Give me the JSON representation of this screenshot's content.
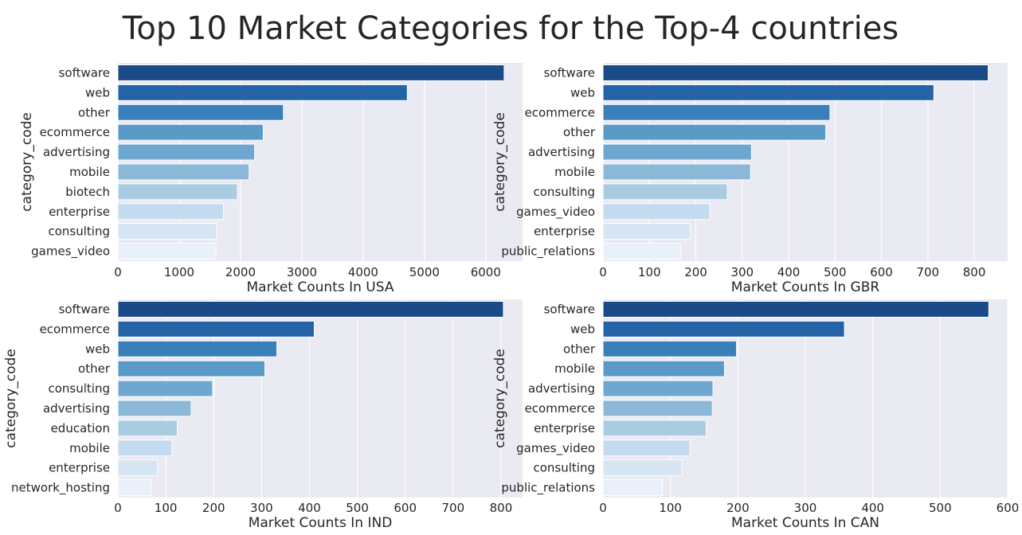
{
  "title": "Top 10 Market Categories for the Top-4 countries",
  "palette": [
    "#1a4a87",
    "#2464a6",
    "#3980ba",
    "#5a9ac8",
    "#6ea7d0",
    "#8ab8d6",
    "#aacce3",
    "#c4daee",
    "#d6e5f3",
    "#e8f0f9"
  ],
  "style": {
    "plot_bg": "#eaeaf2",
    "grid_color": "#ffffff",
    "text_color": "#262626"
  },
  "chart_data": [
    {
      "type": "bar",
      "orientation": "horizontal",
      "categories": [
        "software",
        "web",
        "other",
        "ecommerce",
        "advertising",
        "mobile",
        "biotech",
        "enterprise",
        "consulting",
        "games_video"
      ],
      "values": [
        6300,
        4720,
        2700,
        2370,
        2230,
        2140,
        1950,
        1720,
        1610,
        1600
      ],
      "xlabel": "Market Counts In USA",
      "ylabel": "category_code",
      "xlim": [
        0,
        6600
      ],
      "xticks": [
        0,
        1000,
        2000,
        3000,
        4000,
        5000,
        6000
      ],
      "grid": true
    },
    {
      "type": "bar",
      "orientation": "horizontal",
      "categories": [
        "software",
        "web",
        "ecommerce",
        "other",
        "advertising",
        "mobile",
        "consulting",
        "games_video",
        "enterprise",
        "public_relations"
      ],
      "values": [
        830,
        713,
        489,
        480,
        320,
        318,
        268,
        230,
        188,
        167
      ],
      "xlabel": "Market Counts In GBR",
      "ylabel": "category_code",
      "xlim": [
        0,
        872
      ],
      "xticks": [
        0,
        100,
        200,
        300,
        400,
        500,
        600,
        700,
        800
      ],
      "grid": true
    },
    {
      "type": "bar",
      "orientation": "horizontal",
      "categories": [
        "software",
        "ecommerce",
        "web",
        "other",
        "consulting",
        "advertising",
        "education",
        "mobile",
        "enterprise",
        "network_hosting"
      ],
      "values": [
        805,
        410,
        332,
        307,
        198,
        153,
        124,
        113,
        83,
        70
      ],
      "xlabel": "Market Counts In IND",
      "ylabel": "category_code",
      "xlim": [
        0,
        845
      ],
      "xticks": [
        0,
        100,
        200,
        300,
        400,
        500,
        600,
        700,
        800
      ],
      "grid": true
    },
    {
      "type": "bar",
      "orientation": "horizontal",
      "categories": [
        "software",
        "web",
        "other",
        "mobile",
        "advertising",
        "ecommerce",
        "enterprise",
        "games_video",
        "consulting",
        "public_relations"
      ],
      "values": [
        572,
        358,
        198,
        180,
        163,
        162,
        153,
        129,
        117,
        88
      ],
      "xlabel": "Market Counts In CAN",
      "ylabel": "category_code",
      "xlim": [
        0,
        600
      ],
      "xticks": [
        0,
        100,
        200,
        300,
        400,
        500,
        600
      ],
      "grid": true
    }
  ]
}
